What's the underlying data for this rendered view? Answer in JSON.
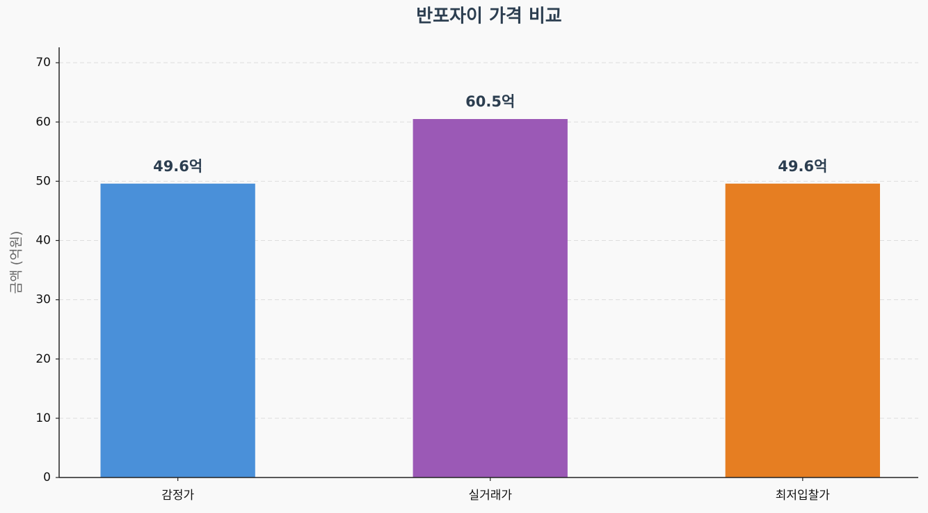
{
  "chart_data": {
    "type": "bar",
    "title": "반포자이 가격 비교",
    "ylabel": "금액 (억원)",
    "categories": [
      "감정가",
      "실거래가",
      "최저입찰가"
    ],
    "values": [
      49.6,
      60.5,
      49.6
    ],
    "value_labels": [
      "49.6억",
      "60.5억",
      "49.6억"
    ],
    "colors": [
      "#4a90d9",
      "#9b59b6",
      "#e67e22"
    ],
    "ylim": [
      0,
      72.6
    ],
    "yticks": [
      0,
      10,
      20,
      30,
      40,
      50,
      60,
      70
    ],
    "grid": true
  }
}
